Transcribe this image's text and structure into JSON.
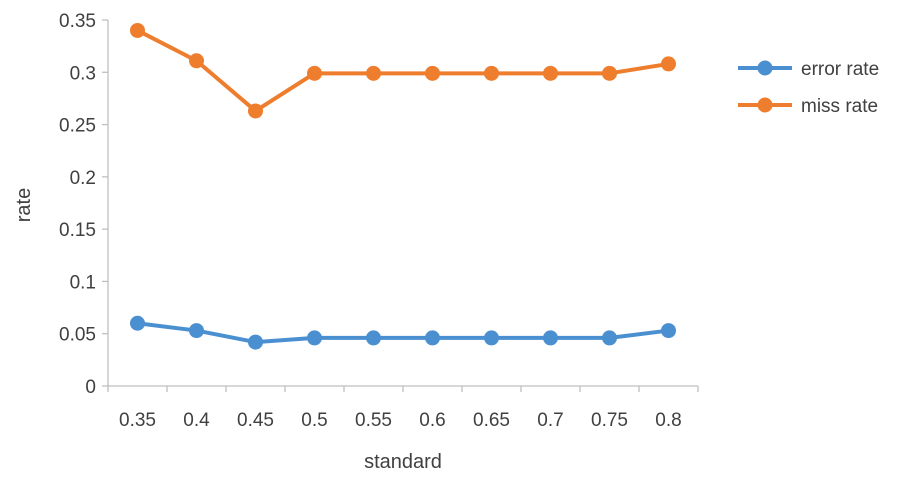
{
  "chart_data": {
    "type": "line",
    "title": "",
    "xlabel": "standard",
    "ylabel": "rate",
    "categories": [
      "0.35",
      "0.4",
      "0.45",
      "0.5",
      "0.55",
      "0.6",
      "0.65",
      "0.7",
      "0.75",
      "0.8"
    ],
    "yticks": [
      "0",
      "0.05",
      "0.1",
      "0.15",
      "0.2",
      "0.25",
      "0.3",
      "0.35"
    ],
    "ylim": [
      0,
      0.35
    ],
    "grid": false,
    "legend_position": "right",
    "series": [
      {
        "name": "error rate",
        "color": "#4A8FD0",
        "values": [
          0.06,
          0.053,
          0.042,
          0.046,
          0.046,
          0.046,
          0.046,
          0.046,
          0.046,
          0.053
        ]
      },
      {
        "name": "miss rate",
        "color": "#EE7D2E",
        "values": [
          0.34,
          0.311,
          0.263,
          0.299,
          0.299,
          0.299,
          0.299,
          0.299,
          0.299,
          0.308
        ]
      }
    ]
  }
}
